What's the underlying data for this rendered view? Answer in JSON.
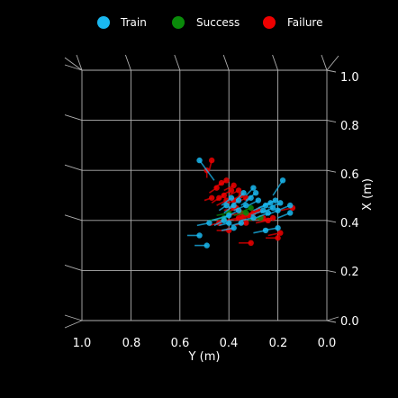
{
  "chart_data": {
    "type": "scatter",
    "view": "3d-top-down",
    "background": "#000000",
    "legend": {
      "placement": "top-center",
      "entries": [
        {
          "label": "Train",
          "color": "#1ab8f0"
        },
        {
          "label": "Success",
          "color": "#0a8a0a"
        },
        {
          "label": "Failure",
          "color": "#ee0000"
        }
      ]
    },
    "xlabel": "X (m)",
    "ylabel": "Y (m)",
    "x_axis": {
      "label": "X (m)",
      "range": [
        0.0,
        1.0
      ],
      "ticks": [
        "0.0",
        "0.2",
        "0.4",
        "0.6",
        "0.8",
        "1.0"
      ]
    },
    "y_axis": {
      "label": "Y (m)",
      "range": [
        1.0,
        0.0
      ],
      "ticks": [
        "1.0",
        "0.8",
        "0.6",
        "0.4",
        "0.2",
        "0.0"
      ]
    },
    "grid": true,
    "series": [
      {
        "name": "Train",
        "color": "#1ab8f0",
        "points": [
          {
            "y": 0.52,
            "x": 0.64,
            "ty": 0.46,
            "tx": 0.56
          },
          {
            "y": 0.18,
            "x": 0.56,
            "ty": 0.22,
            "tx": 0.5
          },
          {
            "y": 0.48,
            "x": 0.39,
            "ty": 0.53,
            "tx": 0.38
          },
          {
            "y": 0.52,
            "x": 0.34,
            "ty": 0.57,
            "tx": 0.34
          },
          {
            "y": 0.49,
            "x": 0.3,
            "ty": 0.54,
            "tx": 0.3
          },
          {
            "y": 0.42,
            "x": 0.4,
            "ty": 0.46,
            "tx": 0.38
          },
          {
            "y": 0.4,
            "x": 0.42,
            "ty": 0.47,
            "tx": 0.4
          },
          {
            "y": 0.36,
            "x": 0.44,
            "ty": 0.42,
            "tx": 0.41
          },
          {
            "y": 0.33,
            "x": 0.46,
            "ty": 0.38,
            "tx": 0.44
          },
          {
            "y": 0.31,
            "x": 0.49,
            "ty": 0.35,
            "tx": 0.46
          },
          {
            "y": 0.29,
            "x": 0.51,
            "ty": 0.33,
            "tx": 0.48
          },
          {
            "y": 0.28,
            "x": 0.48,
            "ty": 0.32,
            "tx": 0.46
          },
          {
            "y": 0.3,
            "x": 0.53,
            "ty": 0.33,
            "tx": 0.5
          },
          {
            "y": 0.34,
            "x": 0.51,
            "ty": 0.37,
            "tx": 0.48
          },
          {
            "y": 0.36,
            "x": 0.48,
            "ty": 0.4,
            "tx": 0.45
          },
          {
            "y": 0.38,
            "x": 0.46,
            "ty": 0.42,
            "tx": 0.43
          },
          {
            "y": 0.25,
            "x": 0.46,
            "ty": 0.3,
            "tx": 0.44
          },
          {
            "y": 0.23,
            "x": 0.47,
            "ty": 0.28,
            "tx": 0.45
          },
          {
            "y": 0.22,
            "x": 0.45,
            "ty": 0.27,
            "tx": 0.43
          },
          {
            "y": 0.21,
            "x": 0.48,
            "ty": 0.26,
            "tx": 0.46
          },
          {
            "y": 0.2,
            "x": 0.44,
            "ty": 0.25,
            "tx": 0.42
          },
          {
            "y": 0.19,
            "x": 0.47,
            "ty": 0.24,
            "tx": 0.45
          },
          {
            "y": 0.24,
            "x": 0.43,
            "ty": 0.29,
            "tx": 0.41
          },
          {
            "y": 0.26,
            "x": 0.44,
            "ty": 0.31,
            "tx": 0.42
          },
          {
            "y": 0.15,
            "x": 0.46,
            "ty": 0.2,
            "tx": 0.44
          },
          {
            "y": 0.15,
            "x": 0.43,
            "ty": 0.2,
            "tx": 0.41
          },
          {
            "y": 0.2,
            "x": 0.37,
            "ty": 0.26,
            "tx": 0.36
          },
          {
            "y": 0.25,
            "x": 0.36,
            "ty": 0.3,
            "tx": 0.35
          },
          {
            "y": 0.35,
            "x": 0.39,
            "ty": 0.39,
            "tx": 0.38
          },
          {
            "y": 0.3,
            "x": 0.41,
            "ty": 0.35,
            "tx": 0.4
          },
          {
            "y": 0.39,
            "x": 0.49,
            "ty": 0.43,
            "tx": 0.46
          },
          {
            "y": 0.41,
            "x": 0.46,
            "ty": 0.44,
            "tx": 0.44
          },
          {
            "y": 0.4,
            "x": 0.39,
            "ty": 0.44,
            "tx": 0.38
          },
          {
            "y": 0.38,
            "x": 0.37,
            "ty": 0.43,
            "tx": 0.36
          }
        ]
      },
      {
        "name": "Success",
        "color": "#0a8a0a",
        "points": [
          {
            "y": 0.42,
            "x": 0.41,
            "ty": 0.48,
            "tx": 0.4
          },
          {
            "y": 0.4,
            "x": 0.43,
            "ty": 0.45,
            "tx": 0.42
          },
          {
            "y": 0.33,
            "x": 0.43,
            "ty": 0.38,
            "tx": 0.42
          },
          {
            "y": 0.31,
            "x": 0.45,
            "ty": 0.36,
            "tx": 0.43
          },
          {
            "y": 0.27,
            "x": 0.41,
            "ty": 0.32,
            "tx": 0.4
          }
        ]
      },
      {
        "name": "Failure",
        "color": "#ee0000",
        "points": [
          {
            "y": 0.47,
            "x": 0.64,
            "ty": 0.48,
            "tx": 0.6
          },
          {
            "y": 0.49,
            "x": 0.6,
            "ty": 0.49,
            "tx": 0.57
          },
          {
            "y": 0.47,
            "x": 0.49,
            "ty": 0.5,
            "tx": 0.48
          },
          {
            "y": 0.45,
            "x": 0.53,
            "ty": 0.48,
            "tx": 0.51
          },
          {
            "y": 0.43,
            "x": 0.55,
            "ty": 0.46,
            "tx": 0.53
          },
          {
            "y": 0.41,
            "x": 0.56,
            "ty": 0.44,
            "tx": 0.54
          },
          {
            "y": 0.38,
            "x": 0.54,
            "ty": 0.42,
            "tx": 0.52
          },
          {
            "y": 0.36,
            "x": 0.52,
            "ty": 0.4,
            "tx": 0.5
          },
          {
            "y": 0.39,
            "x": 0.52,
            "ty": 0.43,
            "tx": 0.5
          },
          {
            "y": 0.42,
            "x": 0.5,
            "ty": 0.45,
            "tx": 0.48
          },
          {
            "y": 0.44,
            "x": 0.49,
            "ty": 0.47,
            "tx": 0.47
          },
          {
            "y": 0.41,
            "x": 0.48,
            "ty": 0.45,
            "tx": 0.46
          },
          {
            "y": 0.38,
            "x": 0.48,
            "ty": 0.42,
            "tx": 0.46
          },
          {
            "y": 0.35,
            "x": 0.5,
            "ty": 0.39,
            "tx": 0.48
          },
          {
            "y": 0.33,
            "x": 0.49,
            "ty": 0.37,
            "tx": 0.47
          },
          {
            "y": 0.37,
            "x": 0.45,
            "ty": 0.41,
            "tx": 0.43
          },
          {
            "y": 0.35,
            "x": 0.43,
            "ty": 0.4,
            "tx": 0.42
          },
          {
            "y": 0.32,
            "x": 0.42,
            "ty": 0.37,
            "tx": 0.41
          },
          {
            "y": 0.34,
            "x": 0.41,
            "ty": 0.38,
            "tx": 0.4
          },
          {
            "y": 0.3,
            "x": 0.43,
            "ty": 0.35,
            "tx": 0.42
          },
          {
            "y": 0.28,
            "x": 0.44,
            "ty": 0.33,
            "tx": 0.42
          },
          {
            "y": 0.26,
            "x": 0.41,
            "ty": 0.31,
            "tx": 0.4
          },
          {
            "y": 0.24,
            "x": 0.4,
            "ty": 0.29,
            "tx": 0.39
          },
          {
            "y": 0.22,
            "x": 0.41,
            "ty": 0.27,
            "tx": 0.4
          },
          {
            "y": 0.19,
            "x": 0.35,
            "ty": 0.24,
            "tx": 0.34
          },
          {
            "y": 0.2,
            "x": 0.33,
            "ty": 0.25,
            "tx": 0.33
          },
          {
            "y": 0.14,
            "x": 0.45,
            "ty": 0.19,
            "tx": 0.44
          },
          {
            "y": 0.36,
            "x": 0.41,
            "ty": 0.41,
            "tx": 0.4
          },
          {
            "y": 0.33,
            "x": 0.39,
            "ty": 0.38,
            "tx": 0.38
          },
          {
            "y": 0.4,
            "x": 0.36,
            "ty": 0.45,
            "tx": 0.36
          },
          {
            "y": 0.44,
            "x": 0.39,
            "ty": 0.48,
            "tx": 0.38
          },
          {
            "y": 0.31,
            "x": 0.31,
            "ty": 0.36,
            "tx": 0.31
          },
          {
            "y": 0.38,
            "x": 0.45,
            "ty": 0.42,
            "tx": 0.44
          }
        ]
      }
    ]
  }
}
